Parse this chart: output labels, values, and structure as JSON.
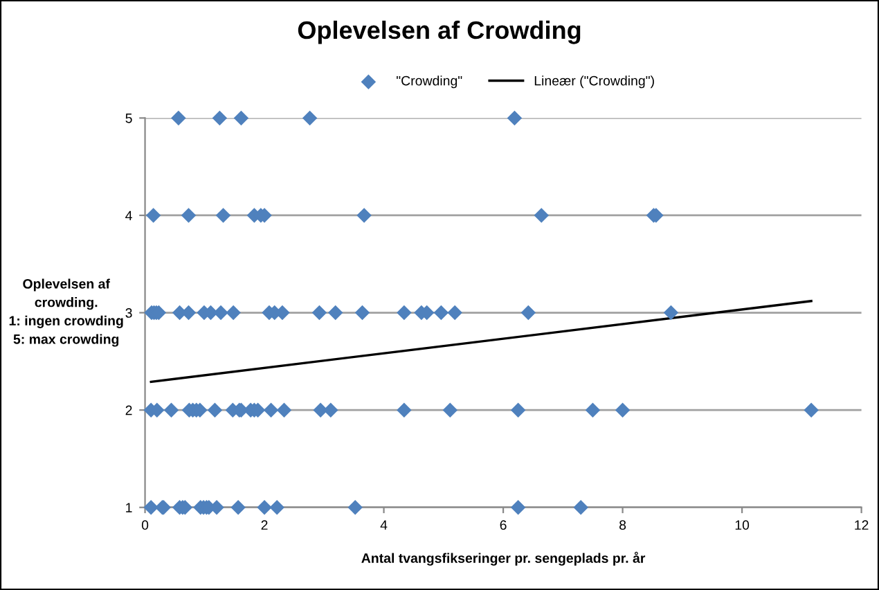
{
  "chart_data": {
    "type": "scatter",
    "title": "Oplevelsen af Crowding",
    "xlabel": "Antal tvangsfikseringer pr. sengeplads pr. år",
    "ylabel": "Oplevelsen af\ncrowding.\n1: ingen crowding\n5: max crowding",
    "xlim": [
      0,
      12
    ],
    "xticks": [
      0,
      2,
      4,
      6,
      8,
      10,
      12
    ],
    "ylim": [
      1,
      5
    ],
    "yticks": [
      1,
      2,
      3,
      4,
      5
    ],
    "grid": "y",
    "legend": "top",
    "marker": "diamond",
    "series": [
      {
        "name": "\"Crowding\"",
        "color": "#4f81bd",
        "x": [
          0.56,
          1.25,
          1.61,
          2.76,
          6.19,
          0.14,
          0.73,
          1.31,
          1.83,
          1.94,
          2.0,
          3.67,
          6.64,
          8.52,
          8.56,
          0.11,
          0.15,
          0.19,
          0.23,
          0.58,
          0.73,
          0.99,
          1.1,
          1.27,
          1.48,
          2.08,
          2.17,
          2.3,
          2.92,
          3.19,
          3.64,
          4.34,
          4.63,
          4.72,
          4.96,
          5.19,
          6.42,
          8.81,
          0.1,
          0.2,
          0.44,
          0.74,
          0.8,
          0.86,
          0.92,
          1.17,
          1.47,
          1.58,
          1.61,
          1.77,
          1.83,
          1.89,
          2.11,
          2.33,
          2.94,
          3.11,
          4.34,
          5.11,
          6.25,
          7.5,
          8.0,
          11.16,
          0.1,
          0.29,
          0.31,
          0.58,
          0.63,
          0.67,
          0.93,
          0.98,
          1.03,
          1.07,
          1.2,
          1.56,
          2.0,
          2.21,
          3.52,
          6.25,
          7.3
        ],
        "values": [
          5,
          5,
          5,
          5,
          5,
          4,
          4,
          4,
          4,
          4,
          4,
          4,
          4,
          4,
          4,
          3,
          3,
          3,
          3,
          3,
          3,
          3,
          3,
          3,
          3,
          3,
          3,
          3,
          3,
          3,
          3,
          3,
          3,
          3,
          3,
          3,
          3,
          3,
          2,
          2,
          2,
          2,
          2,
          2,
          2,
          2,
          2,
          2,
          2,
          2,
          2,
          2,
          2,
          2,
          2,
          2,
          2,
          2,
          2,
          2,
          2,
          2,
          1,
          1,
          1,
          1,
          1,
          1,
          1,
          1,
          1,
          1,
          1,
          1,
          1,
          1,
          1,
          1,
          1
        ]
      },
      {
        "name": "Lineær (\"Crowding\")",
        "type": "line",
        "color": "#000000",
        "marker": "none",
        "line_style": "solid",
        "x": [
          0.1,
          11.16
        ],
        "values": [
          2.29,
          3.12
        ]
      }
    ]
  }
}
